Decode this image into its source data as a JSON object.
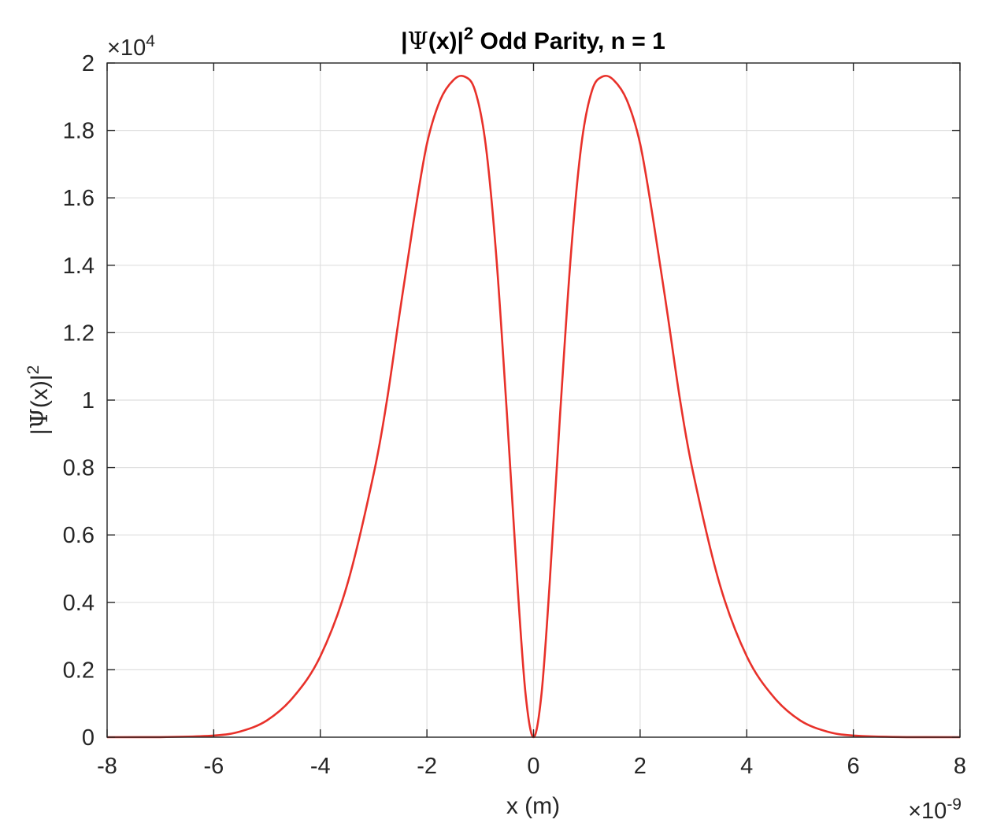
{
  "chart_data": {
    "type": "line",
    "title": {
      "prefix": "|",
      "psi": "Ψ",
      "middle": "(x)|",
      "power": "2",
      "suffix": " Odd Parity, n = 1"
    },
    "xlabel": "x (m)",
    "ylabel": {
      "prefix": "|",
      "psi": "Ψ",
      "middle": "(x)|",
      "power": "2"
    },
    "x_multiplier": {
      "base": "×10",
      "exponent": "-9"
    },
    "y_multiplier": {
      "base": "×10",
      "exponent": "4"
    },
    "xlim": [
      -8e-09,
      8e-09
    ],
    "ylim": [
      0,
      20000
    ],
    "xticks": [
      -8e-09,
      -6e-09,
      -4e-09,
      -2e-09,
      0,
      2e-09,
      4e-09,
      6e-09,
      8e-09
    ],
    "xtick_labels": [
      "-8",
      "-6",
      "-4",
      "-2",
      "0",
      "2",
      "4",
      "6",
      "8"
    ],
    "yticks": [
      0,
      2000,
      4000,
      6000,
      8000,
      10000,
      12000,
      14000,
      16000,
      18000,
      20000
    ],
    "ytick_labels": [
      "0",
      "0.2",
      "0.4",
      "0.6",
      "0.8",
      "1",
      "1.2",
      "1.4",
      "1.6",
      "1.8",
      "2"
    ],
    "grid": true,
    "series": [
      {
        "color": "#e8312a",
        "x": [
          -8e-09,
          -7e-09,
          -6e-09,
          -5.5e-09,
          -5e-09,
          -4.5e-09,
          -4e-09,
          -3.5e-09,
          -3e-09,
          -2.75e-09,
          -2.5e-09,
          -2.25e-09,
          -2e-09,
          -1.75e-09,
          -1.5e-09,
          -1.3e-09,
          -1.1e-09,
          -9e-10,
          -7e-10,
          -5e-10,
          -3e-10,
          -1.5e-10,
          0,
          1.5e-10,
          3e-10,
          5e-10,
          7e-10,
          9e-10,
          1.1e-09,
          1.3e-09,
          1.5e-09,
          1.75e-09,
          2e-09,
          2.25e-09,
          2.5e-09,
          2.75e-09,
          3e-09,
          3.5e-09,
          4e-09,
          4.5e-09,
          5e-09,
          5.5e-09,
          6e-09,
          7e-09,
          8e-09
        ],
        "y": [
          0,
          2,
          50,
          170,
          500,
          1200,
          2400,
          4500,
          7800,
          10000,
          12700,
          15300,
          17600,
          18900,
          19500,
          19600,
          19200,
          17600,
          14300,
          9600,
          4500,
          1300,
          0,
          1300,
          4500,
          9600,
          14300,
          17600,
          19200,
          19600,
          19500,
          18900,
          17600,
          15300,
          12700,
          10000,
          7800,
          4500,
          2400,
          1200,
          500,
          170,
          50,
          2,
          0
        ]
      }
    ]
  }
}
